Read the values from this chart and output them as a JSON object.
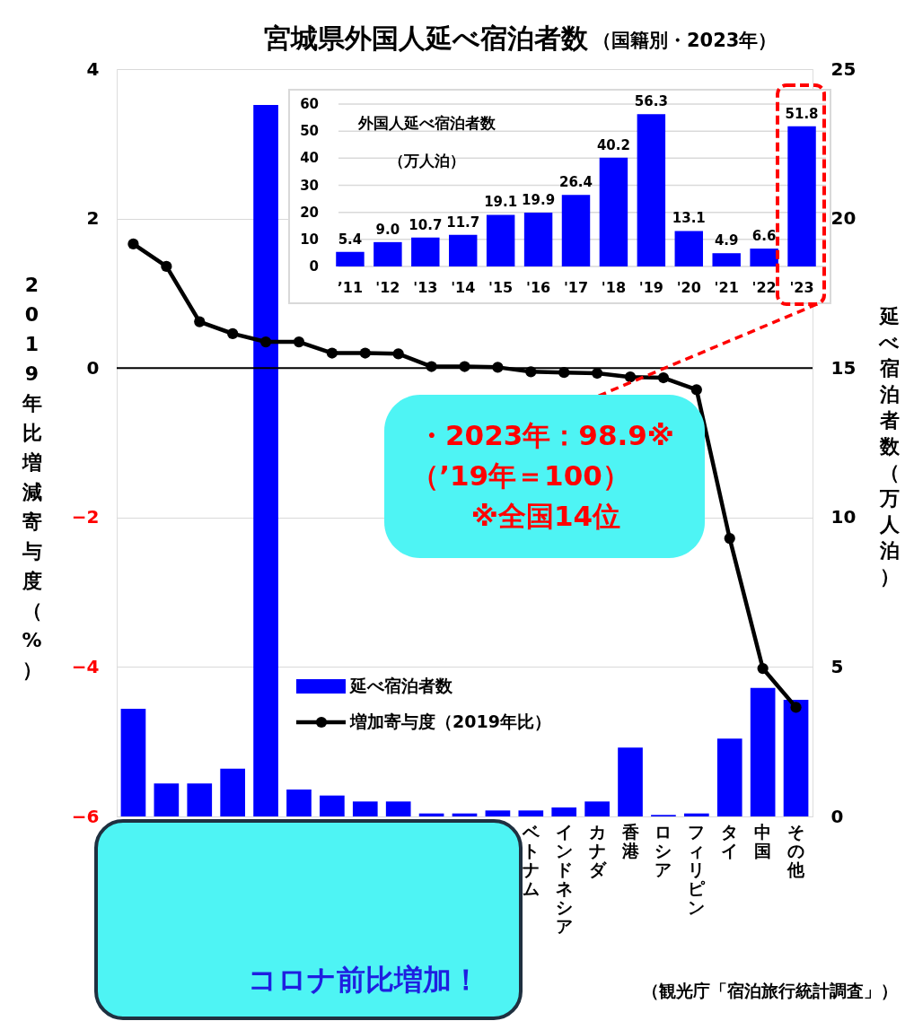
{
  "chart_data": [
    {
      "type": "bar",
      "title": "宮城県外国人延べ宿泊者数",
      "subtitle": "（国籍別・2023年）",
      "categories": [
        null,
        null,
        null,
        null,
        null,
        null,
        null,
        null,
        null,
        null,
        null,
        null,
        "ベトナム",
        "インドネシア",
        "カナダ",
        "香港",
        "ロシア",
        "フィリピン",
        "タイ",
        "中国",
        "その他"
      ],
      "series": [
        {
          "name": "延べ宿泊者数",
          "axis": "y2",
          "color": "#0000ff",
          "values": [
            3.6,
            1.1,
            1.1,
            1.6,
            23.8,
            0.9,
            0.7,
            0.5,
            0.5,
            0.1,
            0.1,
            0.2,
            0.2,
            0.3,
            0.5,
            2.3,
            0.05,
            0.1,
            2.6,
            4.3,
            3.9
          ]
        },
        {
          "name": "増加寄与度（2019年比）",
          "type": "line",
          "color": "#000000",
          "values": [
            1.66,
            1.36,
            0.62,
            0.46,
            0.35,
            0.35,
            0.2,
            0.2,
            0.19,
            0.02,
            0.02,
            0.01,
            -0.05,
            -0.06,
            -0.07,
            -0.12,
            -0.13,
            -0.29,
            -2.28,
            -4.02,
            -4.54
          ]
        }
      ],
      "ylabel": "2019年比増減寄与度（%）",
      "y2label": "延べ宿泊者数（万人泊）",
      "ylim": [
        -6,
        4
      ],
      "yticks": [
        -6,
        -4,
        -2,
        0,
        2,
        4
      ],
      "y2lim": [
        0,
        25
      ],
      "y2ticks": [
        0,
        5,
        10,
        15,
        20,
        25
      ],
      "ref_lines": [
        {
          "axis": "y",
          "value": 0,
          "color": "#000000"
        }
      ],
      "grid": "y",
      "legend": "bottom",
      "marker": "circle",
      "line_style": "solid",
      "annotations": [
        "・2023年：98.9※",
        "（’19年＝100）",
        "※全国14位",
        "コロナ前比増加！",
        "（観光庁「宿泊旅行統計調査」）"
      ]
    },
    {
      "type": "bar",
      "title": "外国人延べ宿泊者数",
      "subtitle": "（万人泊）",
      "categories": [
        "’11",
        "'12",
        "'13",
        "'14",
        "'15",
        "'16",
        "'17",
        "'18",
        "'19",
        "'20",
        "'21",
        "'22",
        "'23"
      ],
      "values": [
        5.4,
        9.0,
        10.7,
        11.7,
        19.1,
        19.9,
        26.4,
        40.2,
        56.3,
        13.1,
        4.9,
        6.6,
        51.8
      ],
      "color": "#0000ff",
      "value_labels": [
        "5.4",
        "9.0",
        "10.7",
        "11.7",
        "19.1",
        "19.9",
        "26.4",
        "40.2",
        "56.3",
        "13.1",
        "4.9",
        "6.6",
        "51.8"
      ],
      "ylim": [
        0,
        60
      ],
      "yticks": [
        0,
        10,
        20,
        30,
        40,
        50,
        60
      ],
      "grid": "y"
    }
  ]
}
